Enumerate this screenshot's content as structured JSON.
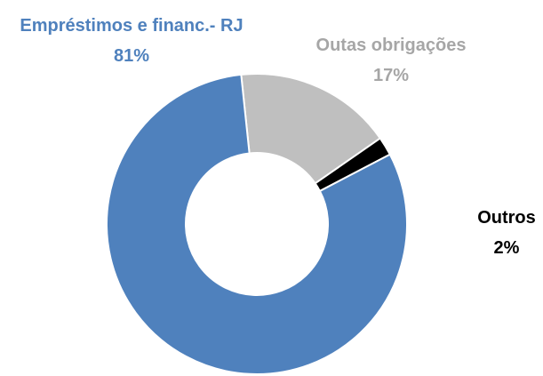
{
  "chart_data": {
    "type": "donut",
    "categories": [
      "Outas obrigações",
      "Outros",
      "Empréstimos e financ.- RJ"
    ],
    "values": [
      17,
      2,
      81
    ],
    "value_labels": [
      "17%",
      "2%",
      "81%"
    ],
    "colors": [
      "#bfbfbf",
      "#000000",
      "#4f81bd"
    ]
  }
}
